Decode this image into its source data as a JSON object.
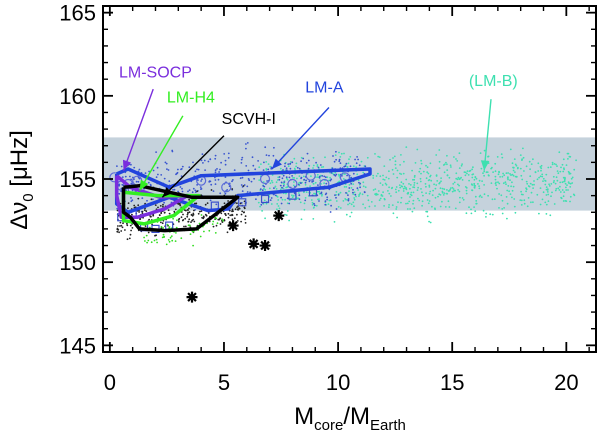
{
  "chart_data": {
    "type": "scatter",
    "title": "",
    "xlabel": {
      "main": "M",
      "sub1": "core",
      "slash": "/M",
      "sub2": "Earth"
    },
    "ylabel": {
      "main": "Δν",
      "sub": "0",
      "unit": " [μHz]"
    },
    "xlim": [
      -0.3,
      21.3
    ],
    "ylim": [
      144.6,
      165.4
    ],
    "xticks": [
      0,
      5,
      10,
      15,
      20
    ],
    "yticks": [
      145,
      150,
      155,
      160,
      165
    ],
    "band": {
      "y0": 153.1,
      "y1": 157.5,
      "color": "#c5d2dc"
    },
    "clouds": [
      {
        "name": "LM-B",
        "color": "#3de0b0",
        "x_range": [
          6.5,
          20.5
        ],
        "y_range": [
          152.0,
          157.3
        ],
        "count": 850
      },
      {
        "name": "LM-A",
        "color": "#3a55d0",
        "x_range": [
          0.3,
          11.2
        ],
        "y_range": [
          152.3,
          157.5
        ],
        "count": 450
      },
      {
        "name": "SCVH-I",
        "color": "#222222",
        "x_range": [
          0.3,
          6.0
        ],
        "y_range": [
          151.3,
          154.5
        ],
        "count": 300
      },
      {
        "name": "LM-H4",
        "color": "#33dd22",
        "x_range": [
          1.5,
          5.0
        ],
        "y_range": [
          150.8,
          153.2
        ],
        "count": 70
      }
    ],
    "circles": [
      {
        "x": 0.2,
        "y": 155.1
      },
      {
        "x": 0.5,
        "y": 154.6
      },
      {
        "x": 0.8,
        "y": 154.7
      },
      {
        "x": 1.0,
        "y": 154.4
      },
      {
        "x": 1.2,
        "y": 154.9
      },
      {
        "x": 4.0,
        "y": 154.9
      },
      {
        "x": 5.1,
        "y": 154.5
      },
      {
        "x": 6.8,
        "y": 155.0
      },
      {
        "x": 8.0,
        "y": 154.7
      },
      {
        "x": 8.8,
        "y": 155.2
      },
      {
        "x": 9.4,
        "y": 154.7
      },
      {
        "x": 10.3,
        "y": 155.1
      }
    ],
    "squares": [
      {
        "x": 0.5,
        "y": 152.7
      },
      {
        "x": 1.0,
        "y": 152.9
      },
      {
        "x": 1.5,
        "y": 152.1
      },
      {
        "x": 2.0,
        "y": 152.0
      },
      {
        "x": 2.6,
        "y": 152.2
      },
      {
        "x": 4.6,
        "y": 153.4
      },
      {
        "x": 5.8,
        "y": 153.6
      },
      {
        "x": 6.8,
        "y": 153.8
      },
      {
        "x": 8.0,
        "y": 154.0
      },
      {
        "x": 8.9,
        "y": 154.2
      }
    ],
    "stars": [
      {
        "x": 3.6,
        "y": 147.9
      },
      {
        "x": 5.4,
        "y": 152.2
      },
      {
        "x": 6.3,
        "y": 151.1
      },
      {
        "x": 6.8,
        "y": 151.0
      },
      {
        "x": 7.4,
        "y": 152.8
      }
    ],
    "outlines": [
      {
        "name": "LM-A",
        "color": "#2244dd",
        "width": 3.5,
        "points": [
          [
            0.3,
            155.3
          ],
          [
            0.8,
            155.6
          ],
          [
            2.6,
            154.5
          ],
          [
            4.0,
            155.2
          ],
          [
            11.4,
            155.6
          ],
          [
            11.4,
            155.3
          ],
          [
            9.6,
            154.5
          ],
          [
            5.6,
            154.0
          ],
          [
            5.2,
            153.2
          ],
          [
            4.3,
            153.1
          ],
          [
            2.6,
            153.9
          ],
          [
            0.8,
            153.0
          ],
          [
            0.3,
            153.5
          ],
          [
            0.3,
            155.3
          ]
        ]
      },
      {
        "name": "LM-SOCP",
        "color": "#7a2edd",
        "width": 3.5,
        "points": [
          [
            0.3,
            155.2
          ],
          [
            0.9,
            154.5
          ],
          [
            2.2,
            153.9
          ],
          [
            3.4,
            154.0
          ],
          [
            2.4,
            153.2
          ],
          [
            1.2,
            152.7
          ],
          [
            0.5,
            152.7
          ],
          [
            0.3,
            154.0
          ],
          [
            0.3,
            155.2
          ]
        ]
      },
      {
        "name": "LM-H4",
        "color": "#33ee22",
        "width": 3.5,
        "points": [
          [
            0.6,
            154.2
          ],
          [
            2.1,
            154.0
          ],
          [
            3.9,
            154.0
          ],
          [
            2.8,
            152.8
          ],
          [
            1.5,
            152.3
          ],
          [
            0.6,
            152.5
          ],
          [
            0.6,
            154.2
          ]
        ]
      },
      {
        "name": "SCVH-I",
        "color": "#000000",
        "width": 3.5,
        "points": [
          [
            0.6,
            154.5
          ],
          [
            1.3,
            154.6
          ],
          [
            3.6,
            153.9
          ],
          [
            5.6,
            153.9
          ],
          [
            3.8,
            152.0
          ],
          [
            2.4,
            151.9
          ],
          [
            1.3,
            152.0
          ],
          [
            0.9,
            152.7
          ],
          [
            0.6,
            153.0
          ],
          [
            0.6,
            154.5
          ]
        ]
      }
    ],
    "annotations": [
      {
        "text": "LM-SOCP",
        "color": "#7a2edd",
        "label": [
          0.4,
          161.1
        ],
        "anchor": "start",
        "from": [
          1.9,
          160.4
        ],
        "to": [
          0.6,
          155.5
        ]
      },
      {
        "text": "LM-H4",
        "color": "#33ee22",
        "label": [
          2.5,
          159.6
        ],
        "anchor": "start",
        "from": [
          3.2,
          158.8
        ],
        "to": [
          1.3,
          154.3
        ]
      },
      {
        "text": "SCVH-I",
        "color": "#000000",
        "label": [
          4.9,
          158.3
        ],
        "anchor": "start",
        "from": [
          5.0,
          157.6
        ],
        "to": [
          2.3,
          153.9
        ]
      },
      {
        "text": "LM-A",
        "color": "#2244dd",
        "label": [
          9.4,
          160.2
        ],
        "anchor": "middle",
        "from": [
          9.6,
          159.3
        ],
        "to": [
          7.1,
          155.6
        ]
      },
      {
        "text": "(LM-B)",
        "color": "#3de0b0",
        "label": [
          16.8,
          160.6
        ],
        "anchor": "middle",
        "from": [
          16.7,
          159.8
        ],
        "to": [
          16.4,
          155.5
        ]
      }
    ]
  }
}
